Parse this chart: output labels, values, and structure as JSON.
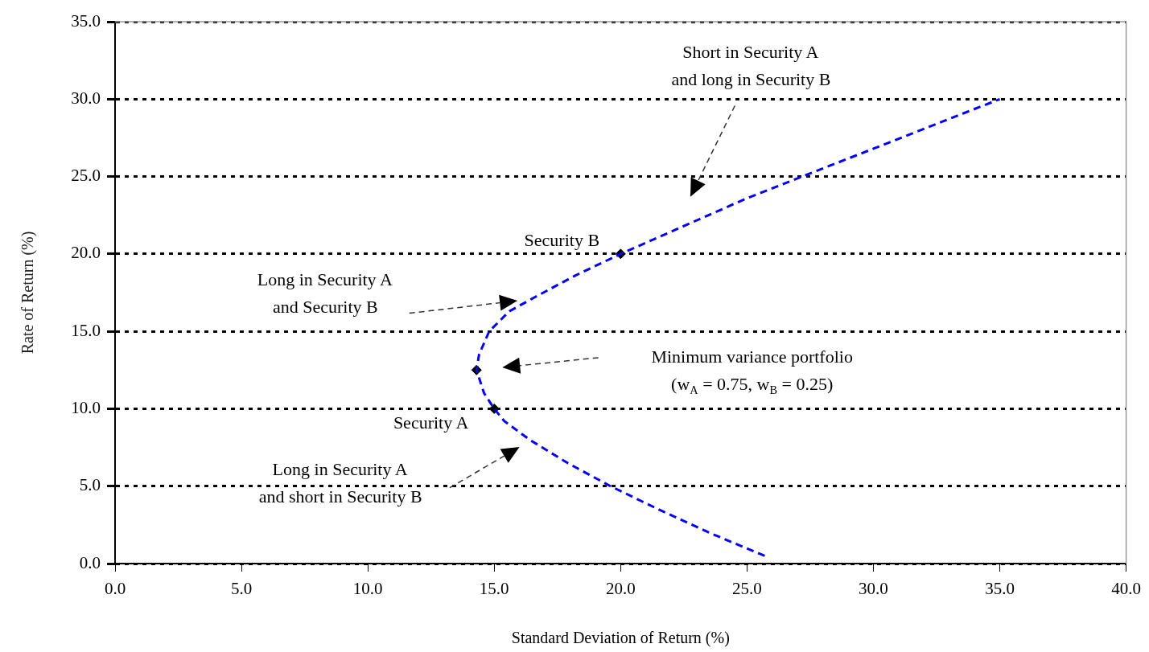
{
  "chart_data": {
    "type": "line",
    "xlabel": "Standard Deviation of Return (%)",
    "ylabel": "Rate of Return (%)",
    "xlim": [
      0,
      40
    ],
    "xticks": [
      {
        "value": 0,
        "label": "0.0"
      },
      {
        "value": 5,
        "label": "5.0"
      },
      {
        "value": 10,
        "label": "10.0"
      },
      {
        "value": 15,
        "label": "15.0"
      },
      {
        "value": 20,
        "label": "20.0"
      },
      {
        "value": 25,
        "label": "25.0"
      },
      {
        "value": 30,
        "label": "30.0"
      },
      {
        "value": 35,
        "label": "35.0"
      },
      {
        "value": 40,
        "label": "40.0"
      }
    ],
    "ylim": [
      0,
      35
    ],
    "yticks": [
      {
        "value": 0,
        "label": "0.0"
      },
      {
        "value": 5,
        "label": "5.0"
      },
      {
        "value": 10,
        "label": "10.0"
      },
      {
        "value": 15,
        "label": "15.0"
      },
      {
        "value": 20,
        "label": "20.0"
      },
      {
        "value": 25,
        "label": "25.0"
      },
      {
        "value": 30,
        "label": "30.0"
      },
      {
        "value": 35,
        "label": "35.0"
      }
    ],
    "grid": "y",
    "legend": false,
    "series": [
      {
        "color": "#0000ff",
        "line_style": "dashed",
        "marker": "none",
        "x": [
          25.7,
          23.5,
          21.5,
          19.6,
          17.9,
          16.4,
          15.4,
          15.0,
          14.6,
          14.3,
          14.4,
          14.8,
          15.6,
          16.6,
          18.2,
          20.0,
          22.5,
          25.0,
          27.5,
          30.0,
          32.5,
          35.0
        ],
        "values": [
          0.5,
          2,
          3.5,
          5,
          6.5,
          8,
          9.2,
          10,
          11,
          12.5,
          13.5,
          15,
          16.3,
          17.2,
          18.6,
          20,
          21.8,
          23.6,
          25.2,
          26.8,
          28.4,
          30
        ]
      },
      {
        "type": "scatter",
        "color": "#000000",
        "marker": "diamond",
        "x": [
          15.0,
          14.3,
          20.0
        ],
        "values": [
          10,
          12.5,
          20
        ]
      }
    ],
    "annotations": [
      "Short in Security A\nand long in Security B",
      {
        "text": "Security B",
        "x": 20.0,
        "y": 20
      },
      "Long in Security A\nand Security B",
      "Minimum variance portfolio\n(w$_{A}$ = 0.75, w$_{B}$ = 0.25)",
      {
        "text": "Security A",
        "x": 15.0,
        "y": 10
      },
      "Long in Security A\nand short in Security B"
    ]
  }
}
